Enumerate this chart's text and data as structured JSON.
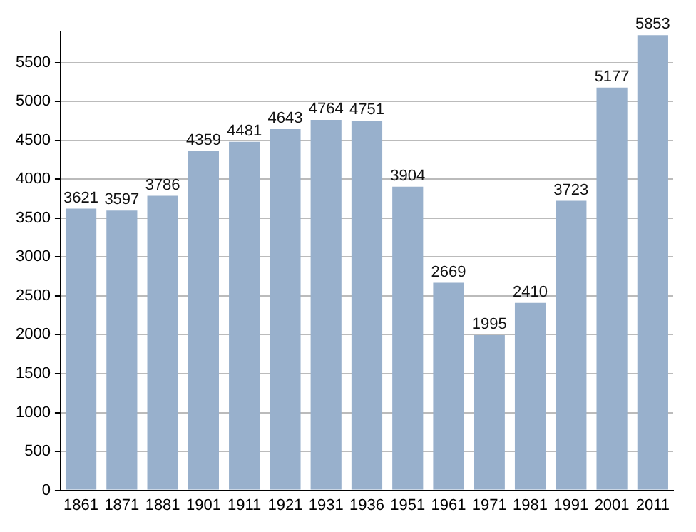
{
  "chart_data": {
    "type": "bar",
    "categories": [
      "1861",
      "1871",
      "1881",
      "1901",
      "1911",
      "1921",
      "1931",
      "1936",
      "1951",
      "1961",
      "1971",
      "1981",
      "1991",
      "2001",
      "2011"
    ],
    "values": [
      3621,
      3597,
      3786,
      4359,
      4481,
      4643,
      4764,
      4751,
      3904,
      2669,
      1995,
      2410,
      3723,
      5177,
      5853
    ],
    "color": "#98b0cc",
    "ylim": [
      0,
      5900
    ],
    "yticks": [
      0,
      500,
      1000,
      1500,
      2000,
      2500,
      3000,
      3500,
      4000,
      4500,
      5000,
      5500
    ],
    "grid": "y",
    "data_labels": true
  }
}
